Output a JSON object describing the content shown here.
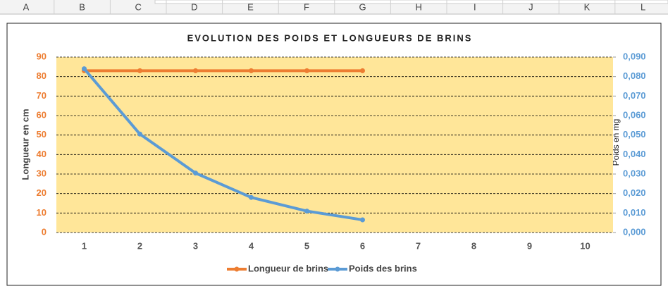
{
  "spreadsheet": {
    "columns": [
      "A",
      "B",
      "C",
      "D",
      "E",
      "F",
      "G",
      "H",
      "I",
      "J",
      "K",
      "L"
    ]
  },
  "chart_data": {
    "type": "line",
    "title": "EVOLUTION DES POIDS ET LONGUEURS DE BRINS",
    "y_label": "Longueur en cm",
    "y2_label": "Poids en mg",
    "categories": [
      "1",
      "2",
      "3",
      "4",
      "5",
      "6",
      "7",
      "8",
      "9",
      "10"
    ],
    "series": [
      {
        "name": "Longueur de brins",
        "color": "#ed7d31",
        "values": [
          83,
          83,
          83,
          83,
          83,
          83,
          null,
          null,
          null,
          null
        ]
      },
      {
        "name": "Poids des brins",
        "color": "#5b9bd5",
        "axis": "y2",
        "values": [
          0.084,
          0.0505,
          0.0305,
          0.018,
          0.011,
          0.0065,
          null,
          null,
          null,
          null
        ]
      }
    ],
    "ylim": [
      0,
      90
    ],
    "yticks": [
      0,
      10,
      20,
      30,
      40,
      50,
      60,
      70,
      80,
      90
    ],
    "y2lim": [
      0,
      0.09
    ],
    "y2ticks": [
      {
        "value": 0,
        "label": "0,000"
      },
      {
        "value": 0.01,
        "label": "0,010"
      },
      {
        "value": 0.02,
        "label": "0,020"
      },
      {
        "value": 0.03,
        "label": "0,030"
      },
      {
        "value": 0.04,
        "label": "0,040"
      },
      {
        "value": 0.05,
        "label": "0,050"
      },
      {
        "value": 0.06,
        "label": "0,060"
      },
      {
        "value": 0.07,
        "label": "0,070"
      },
      {
        "value": 0.08,
        "label": "0,080"
      },
      {
        "value": 0.09,
        "label": "0,090"
      }
    ],
    "grid": true,
    "plot_background": "#ffe699",
    "legend": "bottom"
  }
}
